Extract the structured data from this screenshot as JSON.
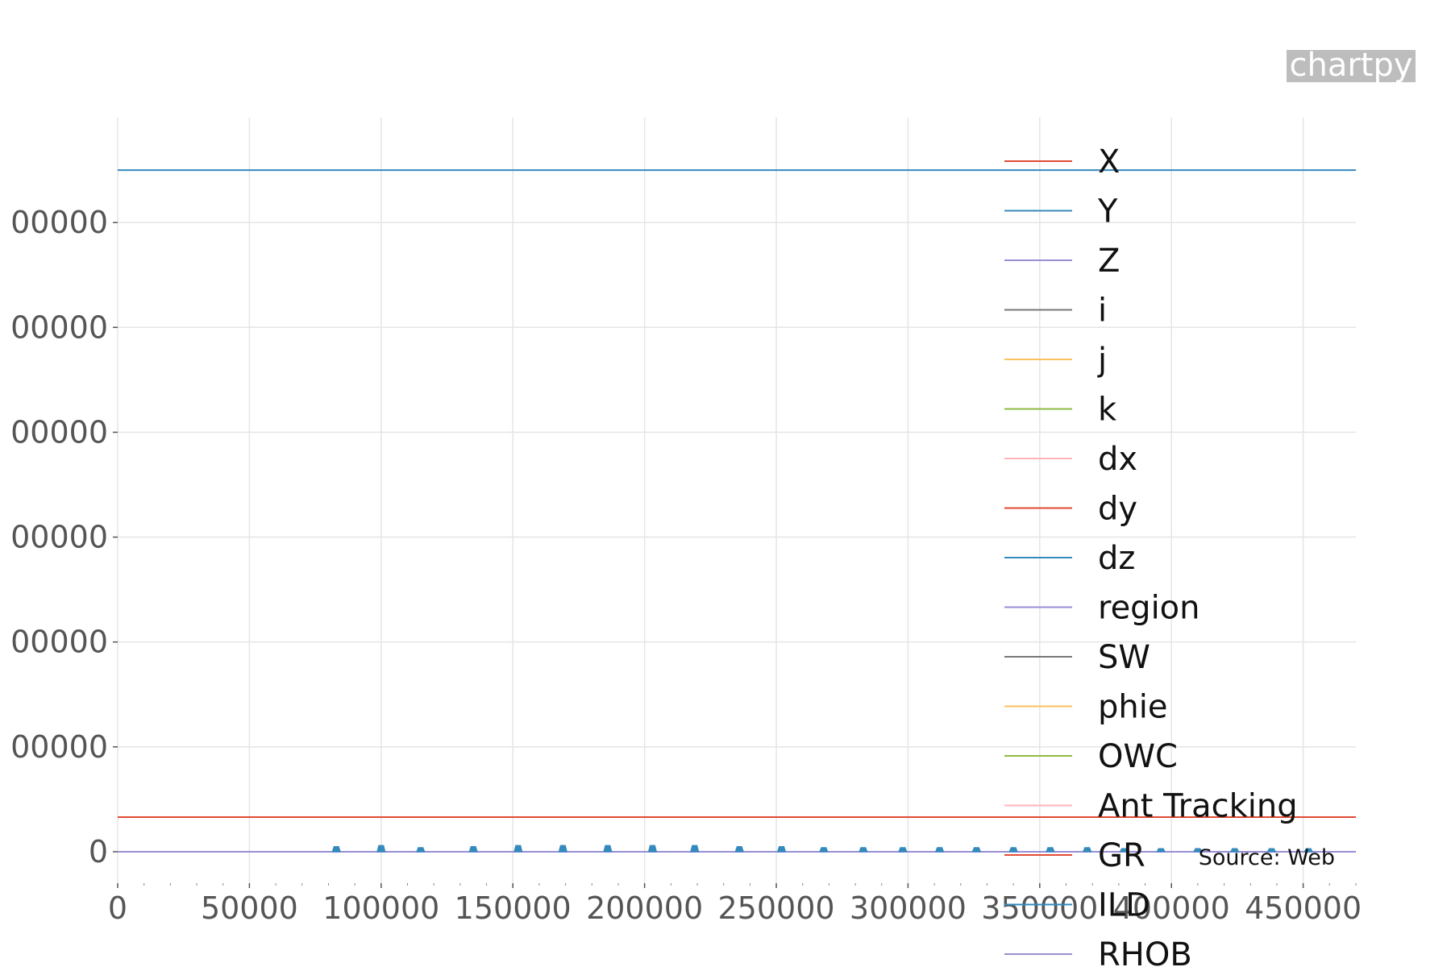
{
  "watermark": "chartpy",
  "source": "Source: Web",
  "chart_data": {
    "type": "line",
    "xlim": [
      0,
      470000
    ],
    "ylim": [
      -300000,
      7000000
    ],
    "x_ticks": [
      0,
      50000,
      100000,
      150000,
      200000,
      250000,
      300000,
      350000,
      400000,
      450000
    ],
    "x_tick_labels": [
      "0",
      "50000",
      "100000",
      "150000",
      "200000",
      "250000",
      "300000",
      "350000",
      "400000",
      "450000"
    ],
    "y_ticks": [
      0,
      1000000,
      2000000,
      3000000,
      4000000,
      5000000,
      6000000
    ],
    "y_tick_labels": [
      "0",
      "00000",
      "00000",
      "00000",
      "00000",
      "00000",
      "00000"
    ],
    "grid": true,
    "legend_position": "right",
    "series": [
      {
        "name": "X",
        "color": "#e24a33",
        "value": 330000
      },
      {
        "name": "Y",
        "color": "#348abd",
        "value": 6500000
      },
      {
        "name": "Z",
        "color": "#988ed5",
        "value": 0
      },
      {
        "name": "i",
        "color": "#777777",
        "value": 0
      },
      {
        "name": "j",
        "color": "#fbc15e",
        "value": 0
      },
      {
        "name": "k",
        "color": "#8eba42",
        "value": 0
      },
      {
        "name": "dx",
        "color": "#ffb5b8",
        "value": 0
      },
      {
        "name": "dy",
        "color": "#e24a33",
        "value": 0
      },
      {
        "name": "dz",
        "color": "#348abd",
        "value": 0
      },
      {
        "name": "region",
        "color": "#988ed5",
        "value": 0
      },
      {
        "name": "SW",
        "color": "#777777",
        "value": 0
      },
      {
        "name": "phie",
        "color": "#fbc15e",
        "value": 0
      },
      {
        "name": "OWC",
        "color": "#8eba42",
        "value": 0
      },
      {
        "name": "Ant Tracking",
        "color": "#ffb5b8",
        "value": 0
      },
      {
        "name": "GR",
        "color": "#e24a33",
        "value": 0
      },
      {
        "name": "ILD",
        "color": "#348abd",
        "value": 0
      },
      {
        "name": "RHOB",
        "color": "#988ed5",
        "value": 0
      }
    ],
    "spikes": {
      "color": "#348abd",
      "x": [
        83000,
        100000,
        115000,
        135000,
        152000,
        169000,
        186000,
        203000,
        219000,
        236000,
        252000,
        268000,
        283000,
        298000,
        312000,
        326000,
        340000,
        354000,
        368000,
        382000,
        396000,
        410000,
        424000,
        438000,
        452000
      ],
      "height": [
        50000,
        60000,
        40000,
        50000,
        60000,
        60000,
        60000,
        60000,
        60000,
        50000,
        50000,
        40000,
        40000,
        40000,
        40000,
        40000,
        40000,
        40000,
        40000,
        30000,
        30000,
        30000,
        30000,
        30000,
        30000
      ]
    }
  }
}
